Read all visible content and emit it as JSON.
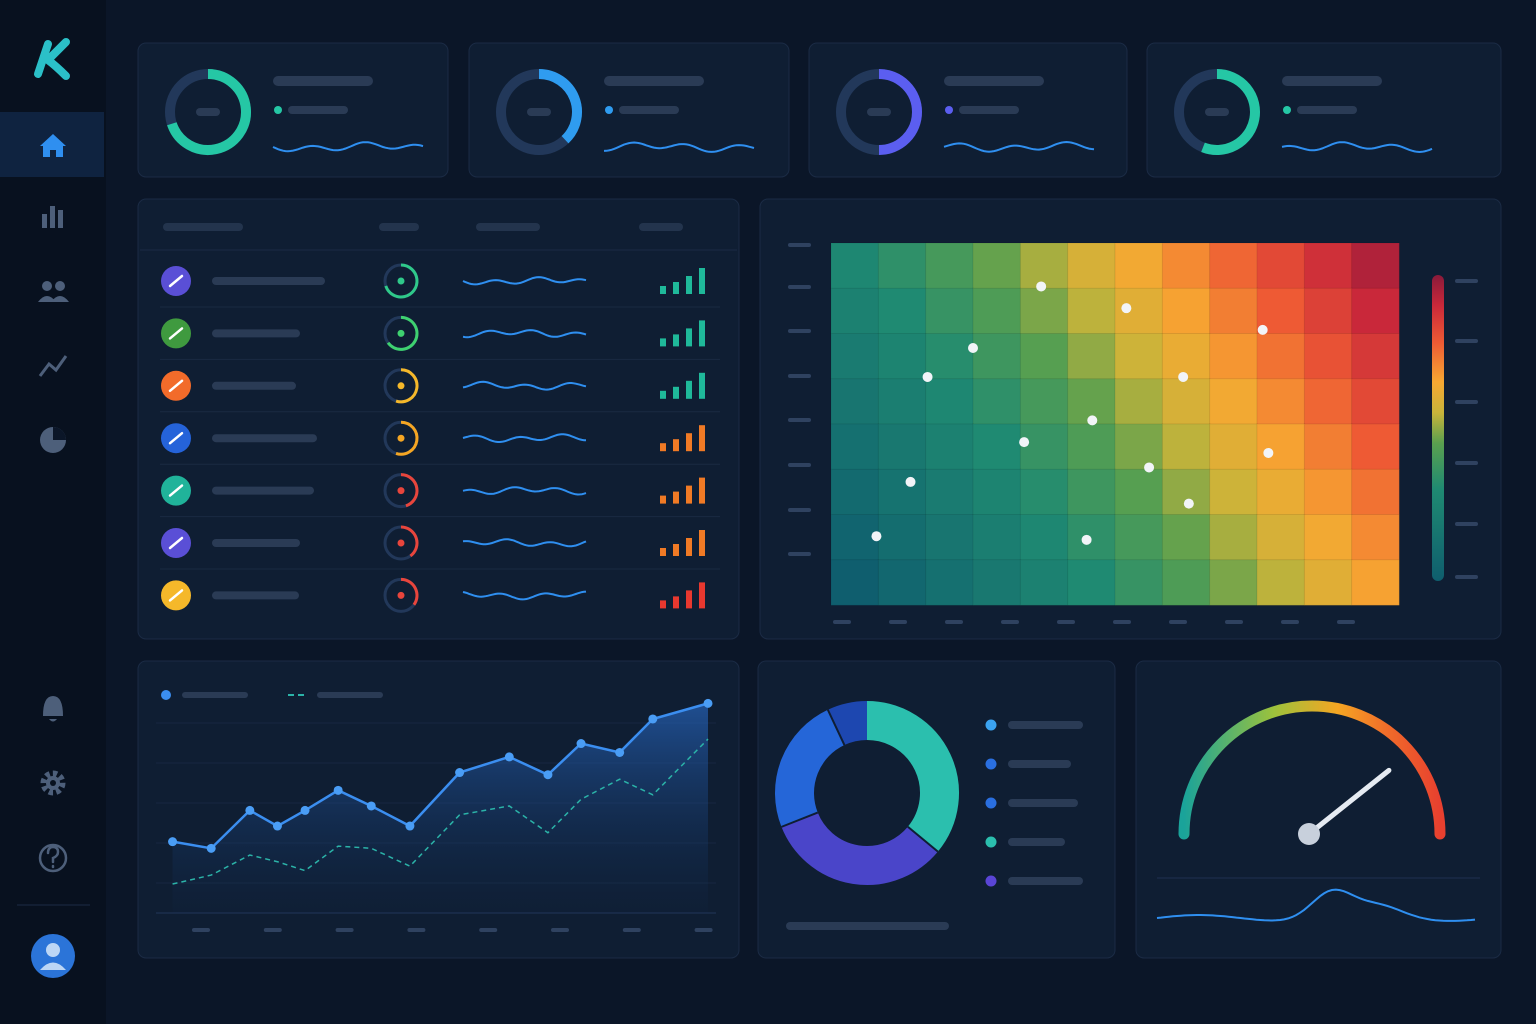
{
  "kpi_cards": [
    {
      "progress": 70,
      "color": "#25c7a5"
    },
    {
      "progress": 38,
      "color": "#2f9cf0"
    },
    {
      "progress": 50,
      "color": "#5b5ef0"
    },
    {
      "progress": 56,
      "color": "#25c7a5"
    }
  ],
  "progress_max": 100,
  "table_rows": [
    {
      "icon_color": "#5a4fd6",
      "progress": 70,
      "color": "#2fc98a",
      "bar_color": "#1fb99a"
    },
    {
      "icon_color": "#3f9a3f",
      "progress": 65,
      "color": "#3ed170",
      "bar_color": "#1fb99a"
    },
    {
      "icon_color": "#f26b2a",
      "progress": 55,
      "color": "#f5b82a",
      "bar_color": "#1fb99a"
    },
    {
      "icon_color": "#2563d9",
      "progress": 55,
      "color": "#f5a623",
      "bar_color": "#f07a25"
    },
    {
      "icon_color": "#20b39a",
      "progress": 45,
      "color": "#e8453c",
      "bar_color": "#f07a25"
    },
    {
      "icon_color": "#5a4fd6",
      "progress": 40,
      "color": "#e8453c",
      "bar_color": "#f07a25"
    },
    {
      "icon_color": "#f5b82a",
      "progress": 35,
      "color": "#e8453c",
      "bar_color": "#e8382f"
    }
  ],
  "heatmap": {
    "zlim": [
      0,
      100
    ],
    "colorscale": [
      [
        0,
        "#0f5e6e"
      ],
      [
        30,
        "#1f8a72"
      ],
      [
        45,
        "#5aa04f"
      ],
      [
        55,
        "#c8b43a"
      ],
      [
        65,
        "#f7a832"
      ],
      [
        78,
        "#ee5a34"
      ],
      [
        90,
        "#c9283a"
      ],
      [
        100,
        "#8a1a3a"
      ]
    ],
    "values": [
      [
        28,
        34,
        40,
        46,
        52,
        58,
        64,
        70,
        76,
        82,
        88,
        94
      ],
      [
        24,
        30,
        36,
        42,
        48,
        54,
        60,
        66,
        72,
        78,
        84,
        90
      ],
      [
        20,
        26,
        32,
        38,
        44,
        50,
        56,
        62,
        68,
        74,
        80,
        86
      ],
      [
        16,
        22,
        28,
        34,
        40,
        46,
        52,
        58,
        64,
        70,
        76,
        82
      ],
      [
        12,
        18,
        24,
        30,
        36,
        42,
        48,
        54,
        60,
        66,
        72,
        78
      ],
      [
        8,
        14,
        20,
        26,
        32,
        38,
        44,
        50,
        56,
        62,
        68,
        74
      ],
      [
        4,
        10,
        16,
        22,
        28,
        34,
        40,
        46,
        52,
        58,
        64,
        70
      ],
      [
        0,
        6,
        12,
        18,
        24,
        30,
        36,
        42,
        48,
        54,
        60,
        66
      ]
    ],
    "xlim": [
      0,
      100
    ],
    "ylim": [
      0,
      100
    ],
    "points": {
      "x": [
        8,
        14,
        17,
        25,
        34,
        37,
        45,
        46,
        52,
        56,
        62,
        63,
        76,
        77
      ],
      "y": [
        19,
        34,
        63,
        71,
        45,
        88,
        18,
        51,
        82,
        38,
        63,
        28,
        76,
        42
      ]
    }
  },
  "line_chart": {
    "xlim": [
      0,
      100
    ],
    "ylim": [
      0,
      100
    ],
    "x": [
      3,
      10,
      17,
      22,
      27,
      33,
      39,
      46,
      55,
      64,
      71,
      77,
      84,
      90,
      100
    ],
    "series": [
      {
        "color": "#3b8ef0",
        "values": [
          32,
          29,
          46,
          39,
          46,
          55,
          48,
          39,
          63,
          70,
          62,
          76,
          72,
          87,
          94
        ]
      },
      {
        "color": "#2bb3a8",
        "dash": true,
        "values": [
          13,
          17,
          26,
          23,
          19,
          30,
          29,
          21,
          44,
          48,
          36,
          51,
          60,
          53,
          78
        ]
      }
    ]
  },
  "donut": {
    "values": [
      36,
      33,
      24,
      7
    ],
    "colors": [
      "#2bbfae",
      "#4a45c9",
      "#2566d8",
      "#1d47b0"
    ]
  },
  "gauge": {
    "range": [
      0,
      100
    ],
    "value": 78
  }
}
